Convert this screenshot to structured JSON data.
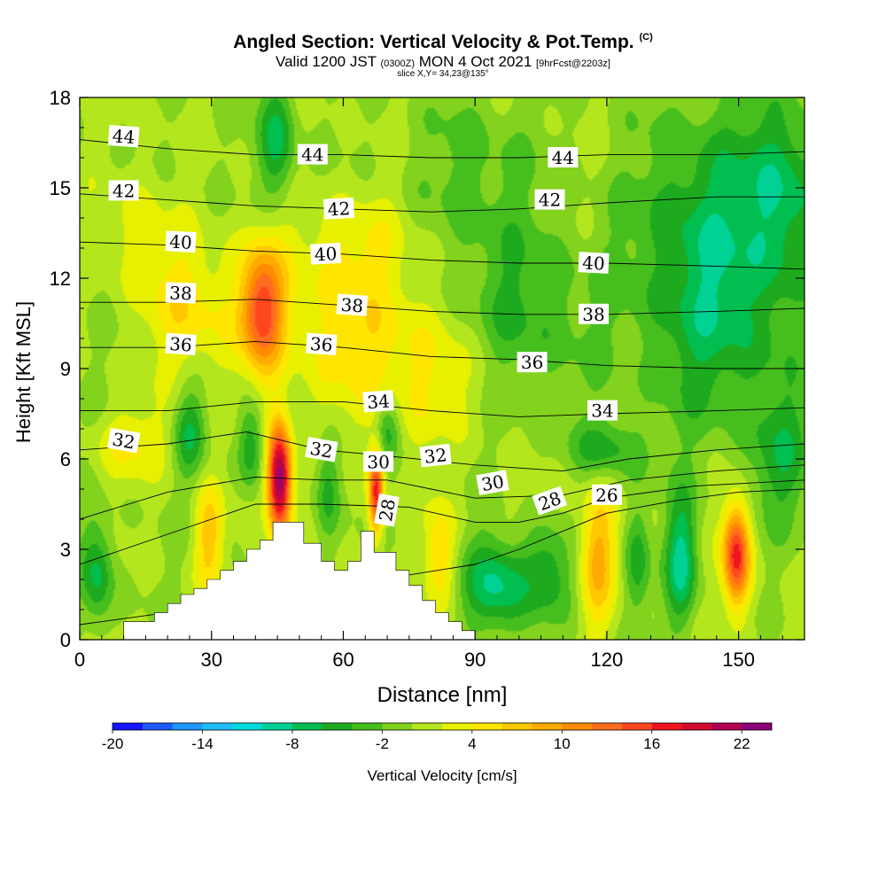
{
  "header": {
    "title": "Angled Section: Vertical Velocity & Pot.Temp.",
    "title_mark": "(C)",
    "valid_prefix": "Valid 1200 JST",
    "valid_utc": "(0300Z)",
    "valid_date": "MON 4 Oct 2021",
    "forecast": "[9hrFcst@2203z]",
    "slice": "slice X,Y= 34,23@135°"
  },
  "chart_data": {
    "type": "heatmap",
    "title": "Angled Section: Vertical Velocity & Pot.Temp.",
    "xlabel": "Distance [nm]",
    "ylabel": "Height [Kft MSL]",
    "xlim": [
      0,
      165
    ],
    "ylim": [
      0,
      18
    ],
    "x_ticks": [
      0,
      30,
      60,
      90,
      120,
      150
    ],
    "y_ticks": [
      0,
      3,
      6,
      9,
      12,
      15,
      18
    ],
    "colorbar": {
      "label": "Vertical Velocity [cm/s]",
      "tick_labels": [
        -20,
        -14,
        -8,
        -2,
        4,
        10,
        16,
        22
      ],
      "levels": [
        -20,
        -18,
        -16,
        -14,
        -12,
        -10,
        -8,
        -6,
        -4,
        -2,
        0,
        2,
        4,
        6,
        8,
        10,
        12,
        14,
        16,
        18,
        20,
        22,
        24
      ],
      "colors": [
        "#1414ff",
        "#1e5aff",
        "#1e96ff",
        "#1ebefa",
        "#00dcdc",
        "#00d296",
        "#00be50",
        "#1eaa1e",
        "#46be1e",
        "#82d21e",
        "#b4e61e",
        "#e6f000",
        "#ffe600",
        "#ffc800",
        "#ffaa00",
        "#ff8c00",
        "#ff6e1e",
        "#ff461e",
        "#f0141e",
        "#d20a32",
        "#b40050",
        "#8c0078"
      ]
    },
    "terrain": {
      "x": [
        0,
        10,
        10,
        17,
        17,
        20,
        20,
        23,
        23,
        26,
        26,
        29,
        29,
        32,
        32,
        35,
        35,
        38,
        38,
        41,
        41,
        44,
        44,
        51,
        51,
        55,
        55,
        58,
        58,
        61,
        61,
        64,
        64,
        67,
        67,
        72,
        72,
        75,
        75,
        78,
        78,
        81,
        81,
        84,
        84,
        87,
        87,
        90,
        90,
        165
      ],
      "y": [
        0,
        0,
        0.6,
        0.6,
        0.9,
        0.9,
        1.2,
        1.2,
        1.5,
        1.5,
        1.7,
        1.7,
        2.0,
        2.0,
        2.3,
        2.3,
        2.6,
        2.6,
        3.0,
        3.0,
        3.3,
        3.3,
        3.9,
        3.9,
        3.2,
        3.2,
        2.6,
        2.6,
        2.3,
        2.3,
        2.6,
        2.6,
        3.6,
        3.6,
        2.9,
        2.9,
        2.3,
        2.3,
        1.8,
        1.8,
        1.3,
        1.3,
        0.9,
        0.9,
        0.6,
        0.6,
        0.3,
        0.3,
        0,
        0
      ]
    },
    "updraft_cells": [
      {
        "x": 45.5,
        "y": 5.3,
        "sx": 1.9,
        "sy": 1.3,
        "w": 24
      },
      {
        "x": 67.5,
        "y": 4.9,
        "sx": 1.2,
        "sy": 1.0,
        "w": 17
      },
      {
        "x": 41.5,
        "y": 11.0,
        "sx": 3.5,
        "sy": 1.4,
        "w": 14
      },
      {
        "x": 149.5,
        "y": 2.8,
        "sx": 2.2,
        "sy": 1.2,
        "w": 17
      },
      {
        "x": 118.0,
        "y": 2.8,
        "sx": 2.8,
        "sy": 1.6,
        "w": 8
      },
      {
        "x": 29.5,
        "y": 3.4,
        "sx": 2.2,
        "sy": 1.2,
        "w": 7
      },
      {
        "x": 25.0,
        "y": 11.0,
        "sx": 7.0,
        "sy": 1.6,
        "w": 5
      },
      {
        "x": 62.0,
        "y": 12.8,
        "sx": 12.0,
        "sy": 1.4,
        "w": 4
      },
      {
        "x": 80.0,
        "y": 8.8,
        "sx": 15.0,
        "sy": 1.6,
        "w": 4
      },
      {
        "x": 60.0,
        "y": 10.0,
        "sx": 14.0,
        "sy": 1.4,
        "w": 3
      },
      {
        "x": 12.0,
        "y": 6.5,
        "sx": 6.0,
        "sy": 0.8,
        "w": 4
      },
      {
        "x": 13.0,
        "y": 13.5,
        "sx": 5.0,
        "sy": 1.4,
        "w": 3
      },
      {
        "x": 82.0,
        "y": 2.8,
        "sx": 2.5,
        "sy": 1.2,
        "w": 6
      },
      {
        "x": 108.0,
        "y": 3.0,
        "sx": 5.0,
        "sy": 1.5,
        "w": 3
      }
    ],
    "downdraft_cells": [
      {
        "x": 95.0,
        "y": 1.8,
        "sx": 5.0,
        "sy": 1.1,
        "w": -9
      },
      {
        "x": 107.0,
        "y": 2.4,
        "sx": 4.0,
        "sy": 1.2,
        "w": -8
      },
      {
        "x": 137.0,
        "y": 2.6,
        "sx": 2.5,
        "sy": 1.5,
        "w": -9
      },
      {
        "x": 4.0,
        "y": 2.2,
        "sx": 2.5,
        "sy": 1.2,
        "w": -7
      },
      {
        "x": 45.0,
        "y": 16.5,
        "sx": 3.0,
        "sy": 1.4,
        "w": -7
      },
      {
        "x": 25.0,
        "y": 6.9,
        "sx": 2.5,
        "sy": 1.0,
        "w": -6
      },
      {
        "x": 39.0,
        "y": 6.5,
        "sx": 2.0,
        "sy": 1.0,
        "w": -6
      },
      {
        "x": 56.5,
        "y": 5.0,
        "sx": 2.0,
        "sy": 1.2,
        "w": -5
      },
      {
        "x": 127.0,
        "y": 2.6,
        "sx": 2.0,
        "sy": 1.3,
        "w": -5
      },
      {
        "x": 100.0,
        "y": 10.5,
        "sx": 12.0,
        "sy": 2.2,
        "w": -5
      },
      {
        "x": 145.0,
        "y": 10.5,
        "sx": 12.0,
        "sy": 2.6,
        "w": -6
      },
      {
        "x": 120.0,
        "y": 6.3,
        "sx": 6.0,
        "sy": 0.7,
        "w": -5
      },
      {
        "x": 160.0,
        "y": 15.0,
        "sx": 6.0,
        "sy": 2.2,
        "w": -6
      },
      {
        "x": 143.0,
        "y": 14.5,
        "sx": 12.0,
        "sy": 2.5,
        "w": -5
      },
      {
        "x": 160.0,
        "y": 6.0,
        "sx": 5.0,
        "sy": 1.6,
        "w": -5
      },
      {
        "x": 90.0,
        "y": 15.5,
        "sx": 10.0,
        "sy": 2.0,
        "w": -3
      },
      {
        "x": 70.0,
        "y": 7.0,
        "sx": 2.0,
        "sy": 0.8,
        "w": -5
      }
    ],
    "theta_contours": [
      {
        "label": "26",
        "pts": [
          [
            0,
            0.5
          ],
          [
            20,
            0.9
          ],
          [
            35,
            1.4
          ],
          [
            60,
            1.8
          ],
          [
            90,
            2.5
          ],
          [
            100,
            3.0
          ],
          [
            110,
            3.6
          ],
          [
            120,
            4.2
          ],
          [
            135,
            4.6
          ],
          [
            150,
            4.9
          ],
          [
            165,
            5.0
          ]
        ]
      },
      {
        "label": "28",
        "pts": [
          [
            0,
            2.5
          ],
          [
            20,
            3.5
          ],
          [
            40,
            4.5
          ],
          [
            55,
            4.5
          ],
          [
            75,
            4.4
          ],
          [
            90,
            3.9
          ],
          [
            100,
            3.9
          ],
          [
            110,
            4.2
          ],
          [
            120,
            4.7
          ],
          [
            140,
            5.1
          ],
          [
            165,
            5.3
          ]
        ]
      },
      {
        "label": "30",
        "pts": [
          [
            0,
            4.0
          ],
          [
            20,
            4.9
          ],
          [
            40,
            5.4
          ],
          [
            55,
            5.3
          ],
          [
            70,
            5.3
          ],
          [
            90,
            4.7
          ],
          [
            110,
            4.8
          ],
          [
            125,
            5.3
          ],
          [
            145,
            5.6
          ],
          [
            165,
            5.8
          ]
        ]
      },
      {
        "label": "32",
        "pts": [
          [
            0,
            6.3
          ],
          [
            20,
            6.5
          ],
          [
            38,
            6.9
          ],
          [
            55,
            6.3
          ],
          [
            70,
            6.1
          ],
          [
            90,
            5.8
          ],
          [
            110,
            5.6
          ],
          [
            125,
            6.0
          ],
          [
            145,
            6.3
          ],
          [
            165,
            6.5
          ]
        ]
      },
      {
        "label": "34",
        "pts": [
          [
            0,
            7.6
          ],
          [
            20,
            7.6
          ],
          [
            40,
            7.9
          ],
          [
            60,
            7.9
          ],
          [
            80,
            7.6
          ],
          [
            100,
            7.4
          ],
          [
            120,
            7.5
          ],
          [
            145,
            7.6
          ],
          [
            165,
            7.7
          ]
        ]
      },
      {
        "label": "36",
        "pts": [
          [
            0,
            9.7
          ],
          [
            20,
            9.7
          ],
          [
            40,
            9.9
          ],
          [
            60,
            9.7
          ],
          [
            80,
            9.4
          ],
          [
            100,
            9.3
          ],
          [
            120,
            9.1
          ],
          [
            145,
            9.0
          ],
          [
            165,
            9.0
          ]
        ]
      },
      {
        "label": "38",
        "pts": [
          [
            0,
            11.2
          ],
          [
            20,
            11.2
          ],
          [
            40,
            11.3
          ],
          [
            60,
            11.1
          ],
          [
            80,
            10.9
          ],
          [
            100,
            10.8
          ],
          [
            120,
            10.8
          ],
          [
            145,
            10.9
          ],
          [
            165,
            11.0
          ]
        ]
      },
      {
        "label": "40",
        "pts": [
          [
            0,
            13.2
          ],
          [
            20,
            13.1
          ],
          [
            40,
            12.9
          ],
          [
            60,
            12.8
          ],
          [
            80,
            12.6
          ],
          [
            100,
            12.5
          ],
          [
            120,
            12.5
          ],
          [
            145,
            12.4
          ],
          [
            165,
            12.3
          ]
        ]
      },
      {
        "label": "42",
        "pts": [
          [
            0,
            14.8
          ],
          [
            20,
            14.6
          ],
          [
            40,
            14.4
          ],
          [
            60,
            14.3
          ],
          [
            80,
            14.2
          ],
          [
            100,
            14.3
          ],
          [
            120,
            14.5
          ],
          [
            145,
            14.7
          ],
          [
            165,
            14.7
          ]
        ]
      },
      {
        "label": "44",
        "pts": [
          [
            0,
            16.6
          ],
          [
            20,
            16.3
          ],
          [
            40,
            16.1
          ],
          [
            60,
            16.1
          ],
          [
            80,
            16.0
          ],
          [
            100,
            16.0
          ],
          [
            120,
            16.1
          ],
          [
            145,
            16.1
          ],
          [
            165,
            16.2
          ]
        ]
      }
    ],
    "contour_labels": [
      {
        "text": "44",
        "x": 10,
        "y": 16.7,
        "rot": 4
      },
      {
        "text": "44",
        "x": 53,
        "y": 16.1,
        "rot": 0
      },
      {
        "text": "44",
        "x": 110,
        "y": 16.0,
        "rot": 0
      },
      {
        "text": "42",
        "x": 10,
        "y": 14.9,
        "rot": 0
      },
      {
        "text": "42",
        "x": 59,
        "y": 14.3,
        "rot": -3
      },
      {
        "text": "42",
        "x": 107,
        "y": 14.6,
        "rot": 0
      },
      {
        "text": "40",
        "x": 23,
        "y": 13.2,
        "rot": 3
      },
      {
        "text": "40",
        "x": 56,
        "y": 12.8,
        "rot": -3
      },
      {
        "text": "40",
        "x": 117,
        "y": 12.5,
        "rot": 3
      },
      {
        "text": "38",
        "x": 23,
        "y": 11.5,
        "rot": 2
      },
      {
        "text": "38",
        "x": 62,
        "y": 11.1,
        "rot": 4
      },
      {
        "text": "38",
        "x": 117,
        "y": 10.8,
        "rot": 0
      },
      {
        "text": "36",
        "x": 23,
        "y": 9.8,
        "rot": 4
      },
      {
        "text": "36",
        "x": 55,
        "y": 9.8,
        "rot": 4
      },
      {
        "text": "36",
        "x": 103,
        "y": 9.2,
        "rot": 0
      },
      {
        "text": "34",
        "x": 68,
        "y": 7.9,
        "rot": -4
      },
      {
        "text": "34",
        "x": 119,
        "y": 7.6,
        "rot": 0
      },
      {
        "text": "32",
        "x": 10,
        "y": 6.6,
        "rot": 10
      },
      {
        "text": "32",
        "x": 55,
        "y": 6.3,
        "rot": 10
      },
      {
        "text": "32",
        "x": 81,
        "y": 6.1,
        "rot": -6
      },
      {
        "text": "30",
        "x": 68,
        "y": 5.9,
        "rot": 0
      },
      {
        "text": "30",
        "x": 94,
        "y": 5.2,
        "rot": -10
      },
      {
        "text": "28",
        "x": 70,
        "y": 4.3,
        "rot": -80
      },
      {
        "text": "28",
        "x": 107,
        "y": 4.6,
        "rot": -20
      },
      {
        "text": "26",
        "x": 120,
        "y": 4.8,
        "rot": 0
      }
    ]
  }
}
